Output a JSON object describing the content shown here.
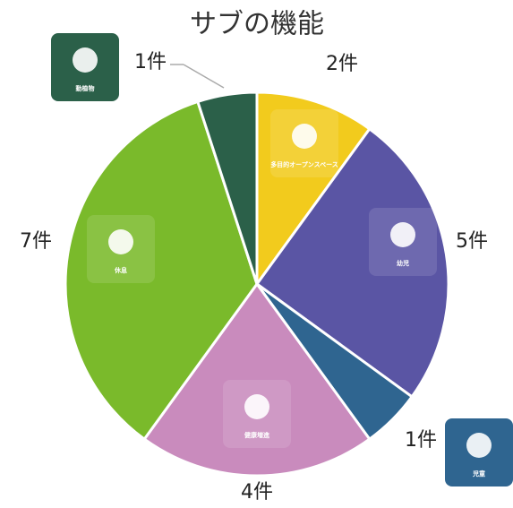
{
  "chart_data": {
    "type": "pie",
    "title": "サブの機能",
    "categories": [
      "多目的オープンスペース",
      "幼児",
      "児童",
      "健康増進",
      "休息",
      "動植物"
    ],
    "values": [
      2,
      5,
      1,
      4,
      7,
      1
    ],
    "value_labels": [
      "2件",
      "5件",
      "1件",
      "4件",
      "7件",
      "1件"
    ],
    "colors": [
      "#f2cb1d",
      "#5a55a4",
      "#2f6590",
      "#c98bbd",
      "#7aba2b",
      "#2b6049"
    ]
  }
}
